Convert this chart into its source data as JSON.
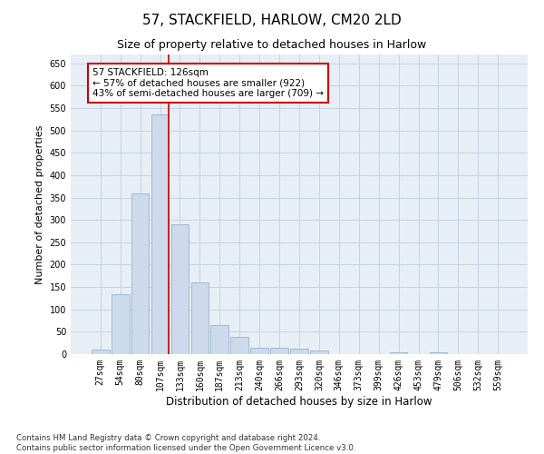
{
  "title1": "57, STACKFIELD, HARLOW, CM20 2LD",
  "title2": "Size of property relative to detached houses in Harlow",
  "xlabel": "Distribution of detached houses by size in Harlow",
  "ylabel": "Number of detached properties",
  "bin_labels": [
    "27sqm",
    "54sqm",
    "80sqm",
    "107sqm",
    "133sqm",
    "160sqm",
    "187sqm",
    "213sqm",
    "240sqm",
    "266sqm",
    "293sqm",
    "320sqm",
    "346sqm",
    "373sqm",
    "399sqm",
    "426sqm",
    "453sqm",
    "479sqm",
    "506sqm",
    "532sqm",
    "559sqm"
  ],
  "bar_heights": [
    10,
    135,
    360,
    535,
    290,
    160,
    65,
    38,
    15,
    15,
    12,
    8,
    0,
    0,
    0,
    5,
    0,
    5,
    0,
    0,
    0
  ],
  "bar_color": "#ccdaeb",
  "bar_edge_color": "#8aaac8",
  "bar_edge_width": 0.5,
  "red_line_x": 3.42,
  "red_line_color": "#cc0000",
  "annotation_text": "57 STACKFIELD: 126sqm\n← 57% of detached houses are smaller (922)\n43% of semi-detached houses are larger (709) →",
  "annotation_box_color": "#ffffff",
  "annotation_box_edge": "#cc0000",
  "annotation_fontsize": 7.5,
  "grid_color": "#b8c8dc",
  "background_color": "#e8eef6",
  "ylim": [
    0,
    670
  ],
  "yticks": [
    0,
    50,
    100,
    150,
    200,
    250,
    300,
    350,
    400,
    450,
    500,
    550,
    600,
    650
  ],
  "footnote": "Contains HM Land Registry data © Crown copyright and database right 2024.\nContains public sector information licensed under the Open Government Licence v3.0.",
  "title1_fontsize": 11,
  "title2_fontsize": 9,
  "xlabel_fontsize": 8.5,
  "ylabel_fontsize": 8,
  "tick_fontsize": 7
}
